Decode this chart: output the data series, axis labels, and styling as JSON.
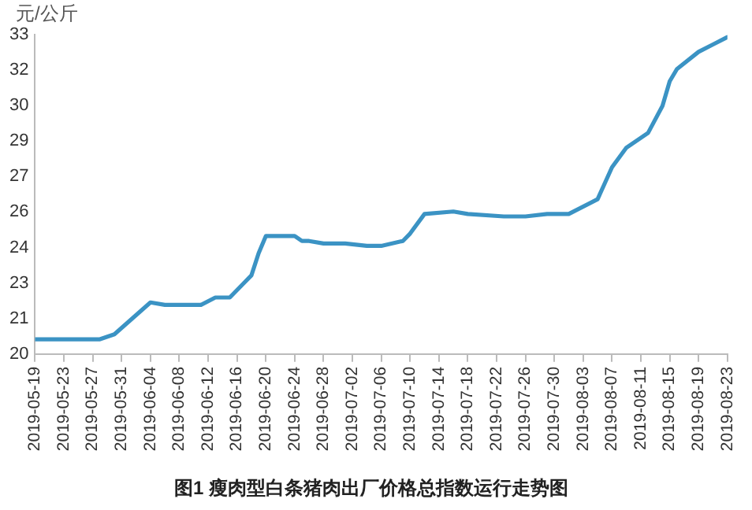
{
  "chart_data": {
    "type": "line",
    "title": "图1 瘦肉型白条猪肉出厂价格总指数运行走势图",
    "ylabel": "元/公斤",
    "x": [
      "2019-05-19",
      "2019-05-28",
      "2019-05-30",
      "2019-06-04",
      "2019-06-06",
      "2019-06-11",
      "2019-06-13",
      "2019-06-15",
      "2019-06-17",
      "2019-06-18",
      "2019-06-19",
      "2019-06-20",
      "2019-06-24",
      "2019-06-25",
      "2019-06-26",
      "2019-06-28",
      "2019-07-01",
      "2019-07-04",
      "2019-07-06",
      "2019-07-09",
      "2019-07-10",
      "2019-07-12",
      "2019-07-16",
      "2019-07-18",
      "2019-07-23",
      "2019-07-26",
      "2019-07-29",
      "2019-08-01",
      "2019-08-05",
      "2019-08-07",
      "2019-08-09",
      "2019-08-12",
      "2019-08-14",
      "2019-08-15",
      "2019-08-16",
      "2019-08-19",
      "2019-08-21",
      "2019-08-23"
    ],
    "series": [
      {
        "color": "#3b93c4",
        "values": [
          20.6,
          20.6,
          20.8,
          22.1,
          22.0,
          22.0,
          22.3,
          22.3,
          22.9,
          23.2,
          24.1,
          24.8,
          24.8,
          24.6,
          24.6,
          24.5,
          24.5,
          24.4,
          24.4,
          24.6,
          24.9,
          25.7,
          25.8,
          25.7,
          25.6,
          25.6,
          25.7,
          25.7,
          26.3,
          27.6,
          28.4,
          29.0,
          30.1,
          31.1,
          31.6,
          32.3,
          32.6,
          32.9
        ]
      }
    ],
    "xlim": [
      "2019-05-19",
      "2019-08-23"
    ],
    "xticks": [
      "2019-05-19",
      "2019-05-23",
      "2019-05-27",
      "2019-05-31",
      "2019-06-04",
      "2019-06-08",
      "2019-06-12",
      "2019-06-16",
      "2019-06-20",
      "2019-06-24",
      "2019-06-28",
      "2019-07-02",
      "2019-07-06",
      "2019-07-10",
      "2019-07-14",
      "2019-07-18",
      "2019-07-22",
      "2019-07-26",
      "2019-07-30",
      "2019-08-03",
      "2019-08-07",
      "2019-08-11",
      "2019-08-15",
      "2019-08-19",
      "2019-08-23"
    ],
    "ylim": [
      20,
      33
    ],
    "yticks": [
      20,
      {
        "value": 21.44,
        "label": "21"
      },
      {
        "value": 22.89,
        "label": "23"
      },
      {
        "value": 24.33,
        "label": "24"
      },
      {
        "value": 25.78,
        "label": "26"
      },
      {
        "value": 27.22,
        "label": "27"
      },
      {
        "value": 28.67,
        "label": "29"
      },
      {
        "value": 30.11,
        "label": "30"
      },
      {
        "value": 31.56,
        "label": "32"
      },
      33
    ],
    "marker": "none",
    "line_style": "solid",
    "legend": false
  }
}
